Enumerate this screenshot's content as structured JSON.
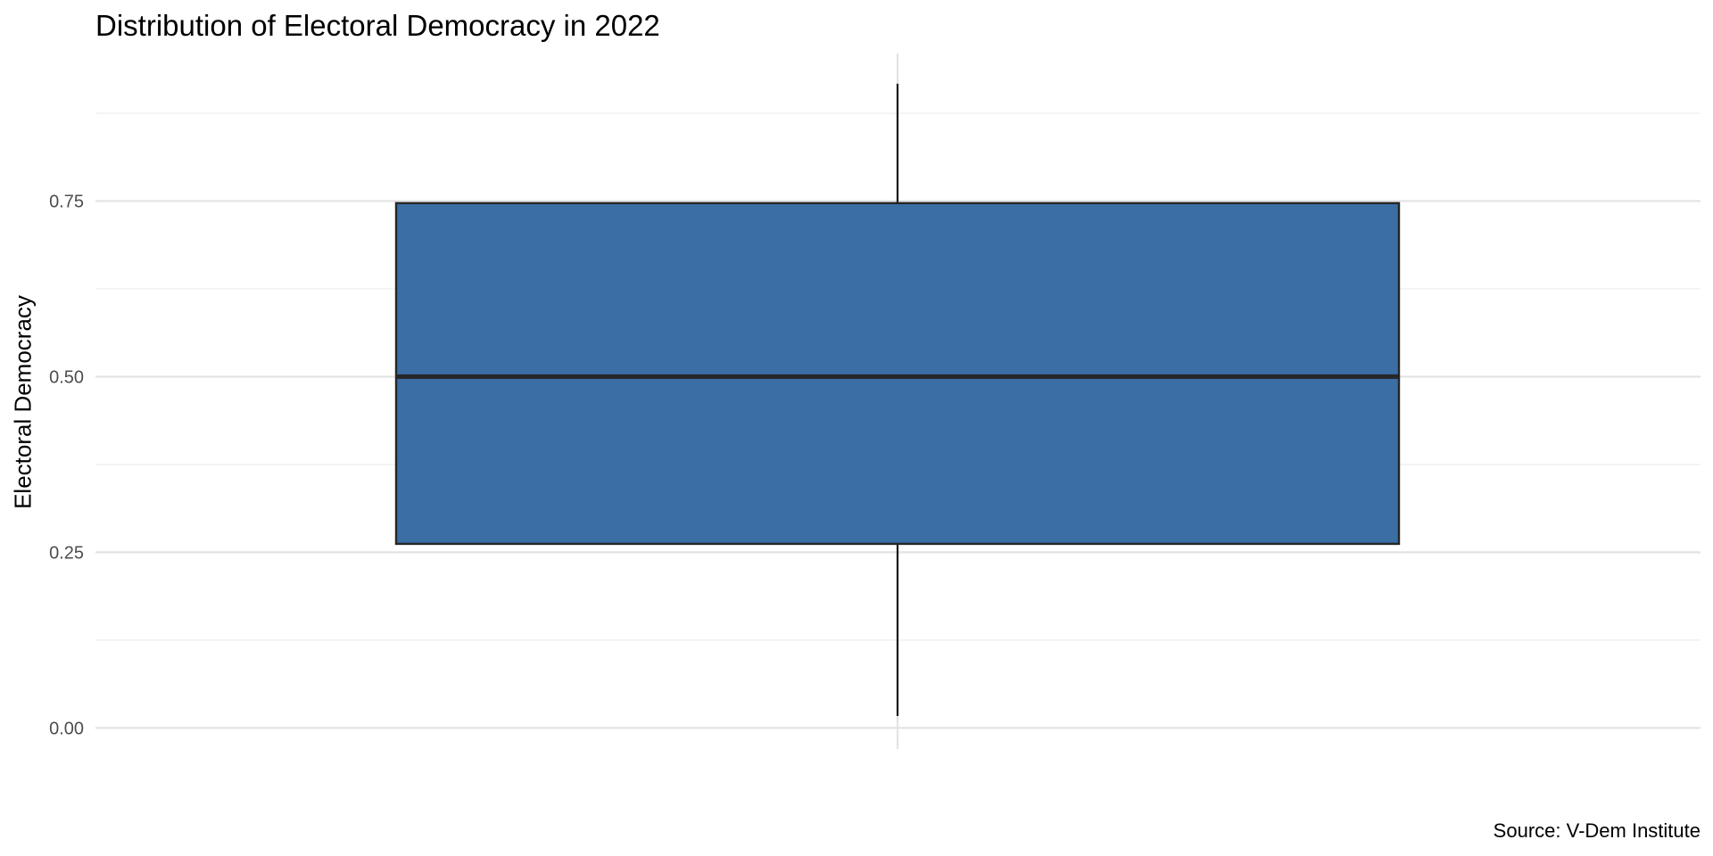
{
  "chart_data": {
    "type": "box",
    "title": "Distribution of Electoral Democracy in 2022",
    "xlabel": "",
    "ylabel": "Electoral Democracy",
    "caption": "Source: V-Dem Institute",
    "y_ticks": [
      0.0,
      0.25,
      0.5,
      0.75
    ],
    "y_tick_labels": [
      "0.00",
      "0.25",
      "0.50",
      "0.75"
    ],
    "ylim": [
      -0.03,
      0.96
    ],
    "grid": true,
    "box": {
      "min": 0.017,
      "q1": 0.262,
      "median": 0.5,
      "q3": 0.747,
      "max": 0.917
    },
    "colors": {
      "box_fill": "#3A6EA5",
      "box_outline": "#262626",
      "grid_major": "#E3E3E3",
      "grid_minor": "#EEEEEE",
      "tick_text": "#4D4D4D"
    }
  }
}
